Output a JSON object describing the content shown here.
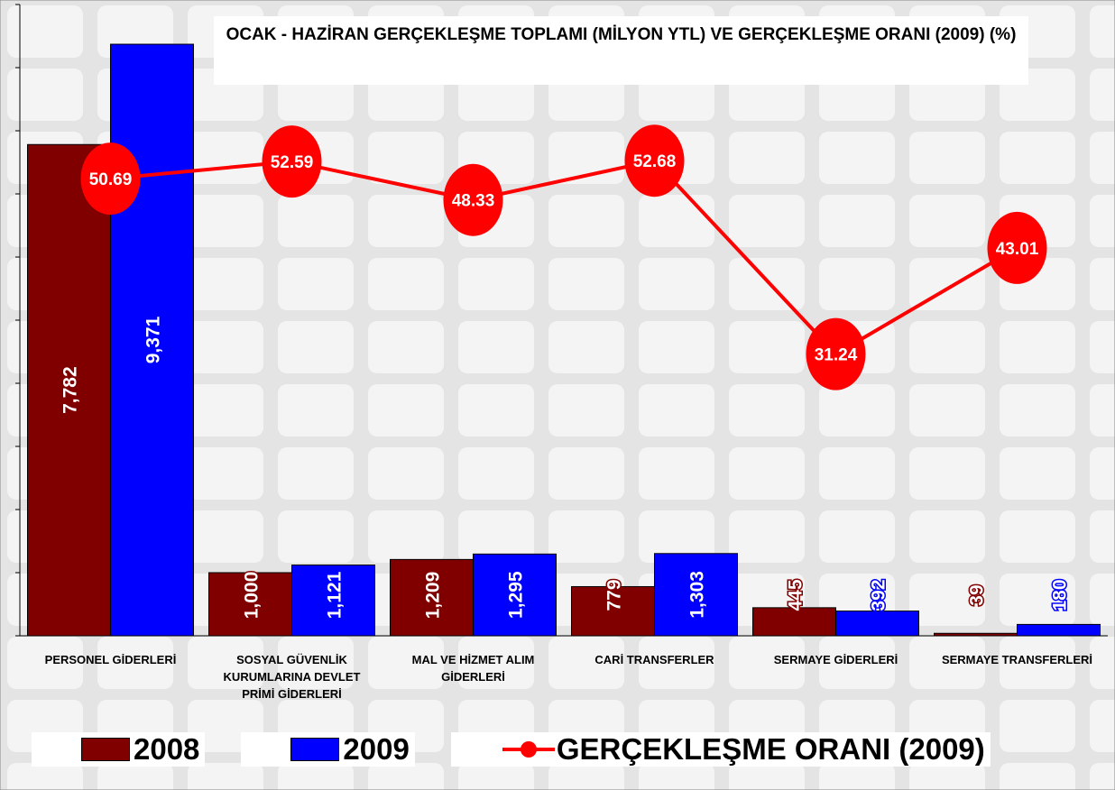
{
  "chart_data": {
    "type": "bar",
    "title": "OCAK - HAZİRAN GERÇEKLEŞME TOPLAMI (MİLYON YTL)  VE  GERÇEKLEŞME ORANI (2009) (%)",
    "categories": [
      "PERSONEL GİDERLERİ",
      "SOSYAL GÜVENLİK KURUMLARINA DEVLET PRİMİ GİDERLERİ",
      "MAL VE HİZMET ALIM GİDERLERİ",
      "CARİ TRANSFERLER",
      "SERMAYE GİDERLERİ",
      "SERMAYE TRANSFERLERİ"
    ],
    "series": [
      {
        "name": "2008",
        "color": "#800000",
        "values": [
          7782,
          1000,
          1209,
          779,
          445,
          39
        ],
        "value_labels": [
          "7,782",
          "1,000",
          "1,209",
          "779",
          "445",
          "39"
        ]
      },
      {
        "name": "2009",
        "color": "#0000ff",
        "values": [
          9371,
          1121,
          1295,
          1303,
          392,
          180
        ],
        "value_labels": [
          "9,371",
          "1,121",
          "1,295",
          "1,303",
          "392",
          "180"
        ]
      },
      {
        "name": "GERÇEKLEŞME ORANI (2009)",
        "color": "#ff0000",
        "type": "line",
        "axis": "y2",
        "values": [
          50.69,
          52.59,
          48.33,
          52.68,
          31.24,
          43.01
        ]
      }
    ],
    "ylim": [
      0,
      10000
    ],
    "yticks": [
      0,
      1000,
      2000,
      3000,
      4000,
      5000,
      6000,
      7000,
      8000,
      9000,
      10000
    ],
    "y2lim": [
      0,
      70
    ]
  }
}
